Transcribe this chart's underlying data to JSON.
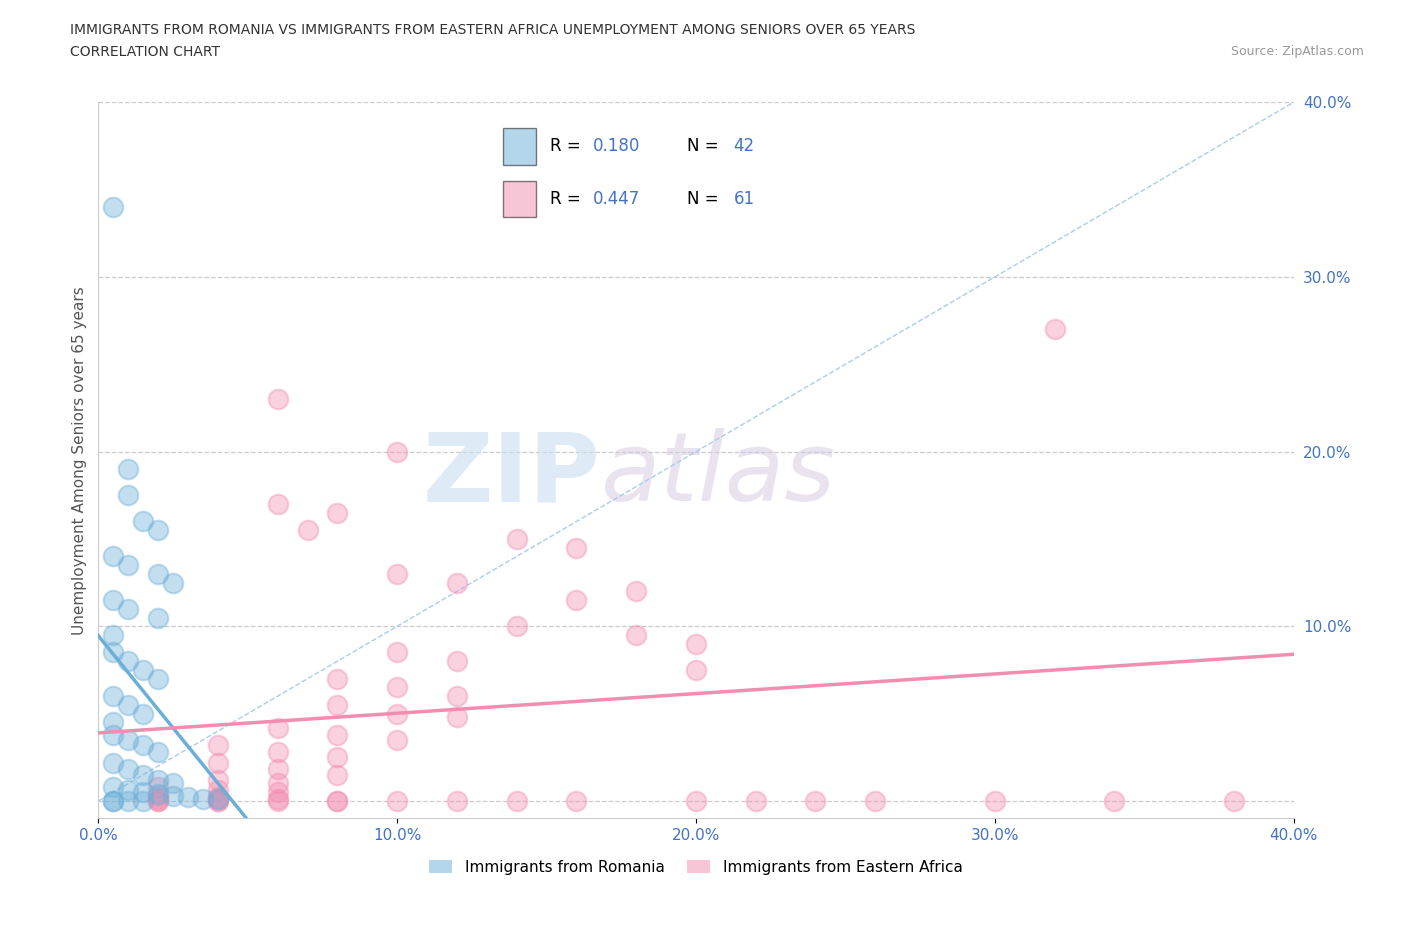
{
  "title_line1": "IMMIGRANTS FROM ROMANIA VS IMMIGRANTS FROM EASTERN AFRICA UNEMPLOYMENT AMONG SENIORS OVER 65 YEARS",
  "title_line2": "CORRELATION CHART",
  "source": "Source: ZipAtlas.com",
  "ylabel": "Unemployment Among Seniors over 65 years",
  "xlim": [
    0.0,
    0.4
  ],
  "ylim": [
    -0.01,
    0.4
  ],
  "xticks": [
    0.0,
    0.1,
    0.2,
    0.3,
    0.4
  ],
  "yticks": [
    0.0,
    0.1,
    0.2,
    0.3,
    0.4
  ],
  "xticklabels": [
    "0.0%",
    "10.0%",
    "20.0%",
    "30.0%",
    "40.0%"
  ],
  "romania_color": "#6baed6",
  "eastern_africa_color": "#f28cb1",
  "romania_R": 0.18,
  "romania_N": 42,
  "eastern_africa_R": 0.447,
  "eastern_africa_N": 61,
  "watermark_zip": "ZIP",
  "watermark_atlas": "atlas",
  "romania_scatter": [
    [
      0.005,
      0.34
    ],
    [
      0.01,
      0.19
    ],
    [
      0.01,
      0.175
    ],
    [
      0.015,
      0.16
    ],
    [
      0.02,
      0.155
    ],
    [
      0.005,
      0.14
    ],
    [
      0.01,
      0.135
    ],
    [
      0.02,
      0.13
    ],
    [
      0.025,
      0.125
    ],
    [
      0.005,
      0.115
    ],
    [
      0.01,
      0.11
    ],
    [
      0.02,
      0.105
    ],
    [
      0.005,
      0.095
    ],
    [
      0.005,
      0.085
    ],
    [
      0.01,
      0.08
    ],
    [
      0.015,
      0.075
    ],
    [
      0.02,
      0.07
    ],
    [
      0.005,
      0.06
    ],
    [
      0.01,
      0.055
    ],
    [
      0.015,
      0.05
    ],
    [
      0.005,
      0.045
    ],
    [
      0.005,
      0.038
    ],
    [
      0.01,
      0.035
    ],
    [
      0.015,
      0.032
    ],
    [
      0.02,
      0.028
    ],
    [
      0.005,
      0.022
    ],
    [
      0.01,
      0.018
    ],
    [
      0.015,
      0.015
    ],
    [
      0.02,
      0.012
    ],
    [
      0.025,
      0.01
    ],
    [
      0.005,
      0.008
    ],
    [
      0.01,
      0.006
    ],
    [
      0.015,
      0.005
    ],
    [
      0.02,
      0.004
    ],
    [
      0.025,
      0.003
    ],
    [
      0.03,
      0.002
    ],
    [
      0.035,
      0.001
    ],
    [
      0.04,
      0.001
    ],
    [
      0.005,
      0.0
    ],
    [
      0.01,
      0.0
    ],
    [
      0.015,
      0.0
    ],
    [
      0.005,
      0.0
    ]
  ],
  "eastern_africa_scatter": [
    [
      0.32,
      0.27
    ],
    [
      0.06,
      0.23
    ],
    [
      0.1,
      0.2
    ],
    [
      0.06,
      0.17
    ],
    [
      0.08,
      0.165
    ],
    [
      0.07,
      0.155
    ],
    [
      0.14,
      0.15
    ],
    [
      0.16,
      0.145
    ],
    [
      0.1,
      0.13
    ],
    [
      0.12,
      0.125
    ],
    [
      0.18,
      0.12
    ],
    [
      0.16,
      0.115
    ],
    [
      0.14,
      0.1
    ],
    [
      0.18,
      0.095
    ],
    [
      0.2,
      0.09
    ],
    [
      0.1,
      0.085
    ],
    [
      0.12,
      0.08
    ],
    [
      0.2,
      0.075
    ],
    [
      0.08,
      0.07
    ],
    [
      0.1,
      0.065
    ],
    [
      0.12,
      0.06
    ],
    [
      0.08,
      0.055
    ],
    [
      0.1,
      0.05
    ],
    [
      0.12,
      0.048
    ],
    [
      0.06,
      0.042
    ],
    [
      0.08,
      0.038
    ],
    [
      0.1,
      0.035
    ],
    [
      0.04,
      0.032
    ],
    [
      0.06,
      0.028
    ],
    [
      0.08,
      0.025
    ],
    [
      0.04,
      0.022
    ],
    [
      0.06,
      0.018
    ],
    [
      0.08,
      0.015
    ],
    [
      0.04,
      0.012
    ],
    [
      0.06,
      0.01
    ],
    [
      0.02,
      0.008
    ],
    [
      0.04,
      0.006
    ],
    [
      0.06,
      0.005
    ],
    [
      0.02,
      0.003
    ],
    [
      0.04,
      0.002
    ],
    [
      0.02,
      0.001
    ],
    [
      0.04,
      0.001
    ],
    [
      0.06,
      0.001
    ],
    [
      0.02,
      0.0
    ],
    [
      0.04,
      0.0
    ],
    [
      0.06,
      0.0
    ],
    [
      0.08,
      0.0
    ],
    [
      0.02,
      0.0
    ],
    [
      0.04,
      0.0
    ],
    [
      0.12,
      0.0
    ],
    [
      0.14,
      0.0
    ],
    [
      0.16,
      0.0
    ],
    [
      0.08,
      0.0
    ],
    [
      0.1,
      0.0
    ],
    [
      0.2,
      0.0
    ],
    [
      0.22,
      0.0
    ],
    [
      0.24,
      0.0
    ],
    [
      0.38,
      0.0
    ],
    [
      0.26,
      0.0
    ],
    [
      0.3,
      0.0
    ],
    [
      0.34,
      0.0
    ]
  ]
}
